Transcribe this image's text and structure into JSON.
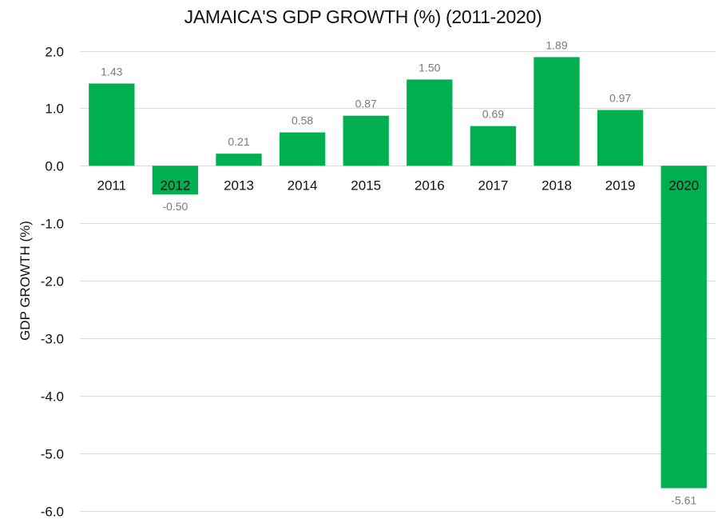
{
  "chart_data": {
    "type": "bar",
    "title": "JAMAICA'S GDP GROWTH (%) (2011-2020)",
    "xlabel": "",
    "ylabel": "GDP GROWTH (%)",
    "categories": [
      "2011",
      "2012",
      "2013",
      "2014",
      "2015",
      "2016",
      "2017",
      "2018",
      "2019",
      "2020"
    ],
    "values": [
      1.43,
      -0.5,
      0.21,
      0.58,
      0.87,
      1.5,
      0.69,
      1.89,
      0.97,
      -5.61
    ],
    "value_labels": [
      "1.43",
      "-0.50",
      "0.21",
      "0.58",
      "0.87",
      "1.50",
      "0.69",
      "1.89",
      "0.97",
      "-5.61"
    ],
    "ylim": [
      -6.0,
      2.0
    ],
    "yticks": [
      2.0,
      1.0,
      0.0,
      -1.0,
      -2.0,
      -3.0,
      -4.0,
      -5.0,
      -6.0
    ],
    "ytick_labels": [
      "2.0",
      "1.0",
      "0.0",
      "-1.0",
      "-2.0",
      "-3.0",
      "-4.0",
      "-5.0",
      "-6.0"
    ],
    "grid": true,
    "legend": "none",
    "bar_color": "#00b050",
    "grid_color": "#d9d9d9"
  }
}
